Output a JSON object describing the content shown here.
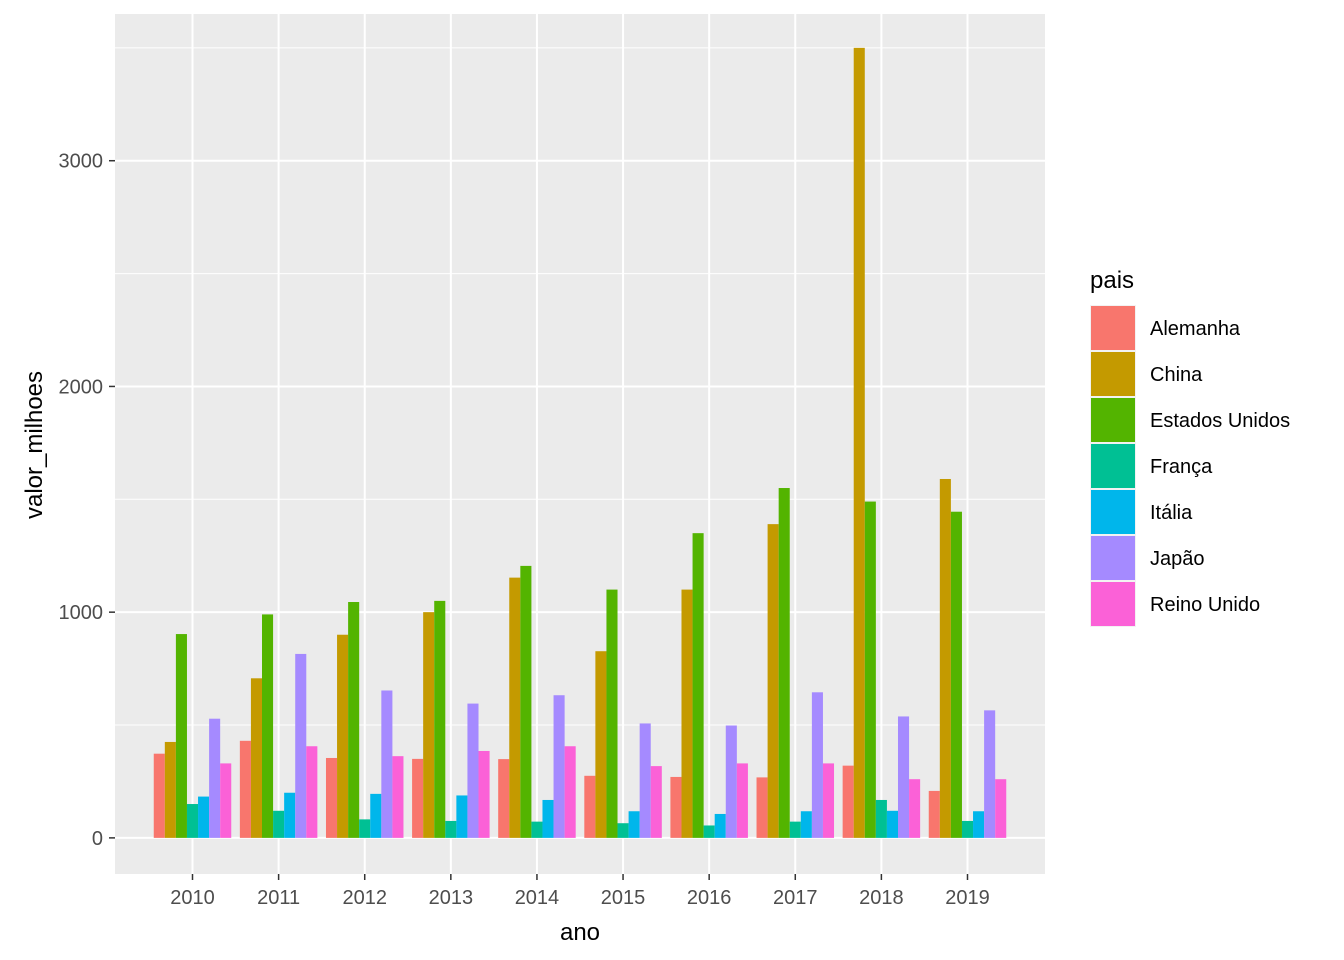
{
  "chart_data": {
    "type": "bar",
    "xlabel": "ano",
    "ylabel": "valor_milhoes",
    "ylim": [
      -160,
      3650
    ],
    "yticks": [
      0,
      1000,
      2000,
      3000
    ],
    "grid": true,
    "legend": {
      "title": "pais",
      "placement": "right"
    },
    "categories": [
      "2010",
      "2011",
      "2012",
      "2013",
      "2014",
      "2015",
      "2016",
      "2017",
      "2018",
      "2019"
    ],
    "series": [
      {
        "name": "Alemanha",
        "color": "#F8766D",
        "values": [
          373,
          430,
          354,
          350,
          349,
          275,
          270,
          268,
          320,
          208
        ]
      },
      {
        "name": "China",
        "color": "#C49A00",
        "values": [
          425,
          707,
          900,
          1000,
          1153,
          827,
          1100,
          1390,
          3500,
          1590
        ]
      },
      {
        "name": "Estados Unidos",
        "color": "#53B400",
        "values": [
          903,
          990,
          1045,
          1050,
          1205,
          1100,
          1350,
          1550,
          1490,
          1445
        ]
      },
      {
        "name": "França",
        "color": "#00C094",
        "values": [
          150,
          120,
          82,
          75,
          72,
          65,
          55,
          72,
          168,
          75
        ]
      },
      {
        "name": "Itália",
        "color": "#00B6EB",
        "values": [
          183,
          200,
          195,
          188,
          168,
          118,
          106,
          118,
          120,
          118
        ]
      },
      {
        "name": "Japão",
        "color": "#A58AFF",
        "values": [
          528,
          815,
          653,
          595,
          632,
          507,
          498,
          645,
          538,
          565
        ]
      },
      {
        "name": "Reino Unido",
        "color": "#FB61D7",
        "values": [
          330,
          406,
          362,
          385,
          406,
          318,
          330,
          330,
          260,
          260
        ]
      }
    ]
  }
}
